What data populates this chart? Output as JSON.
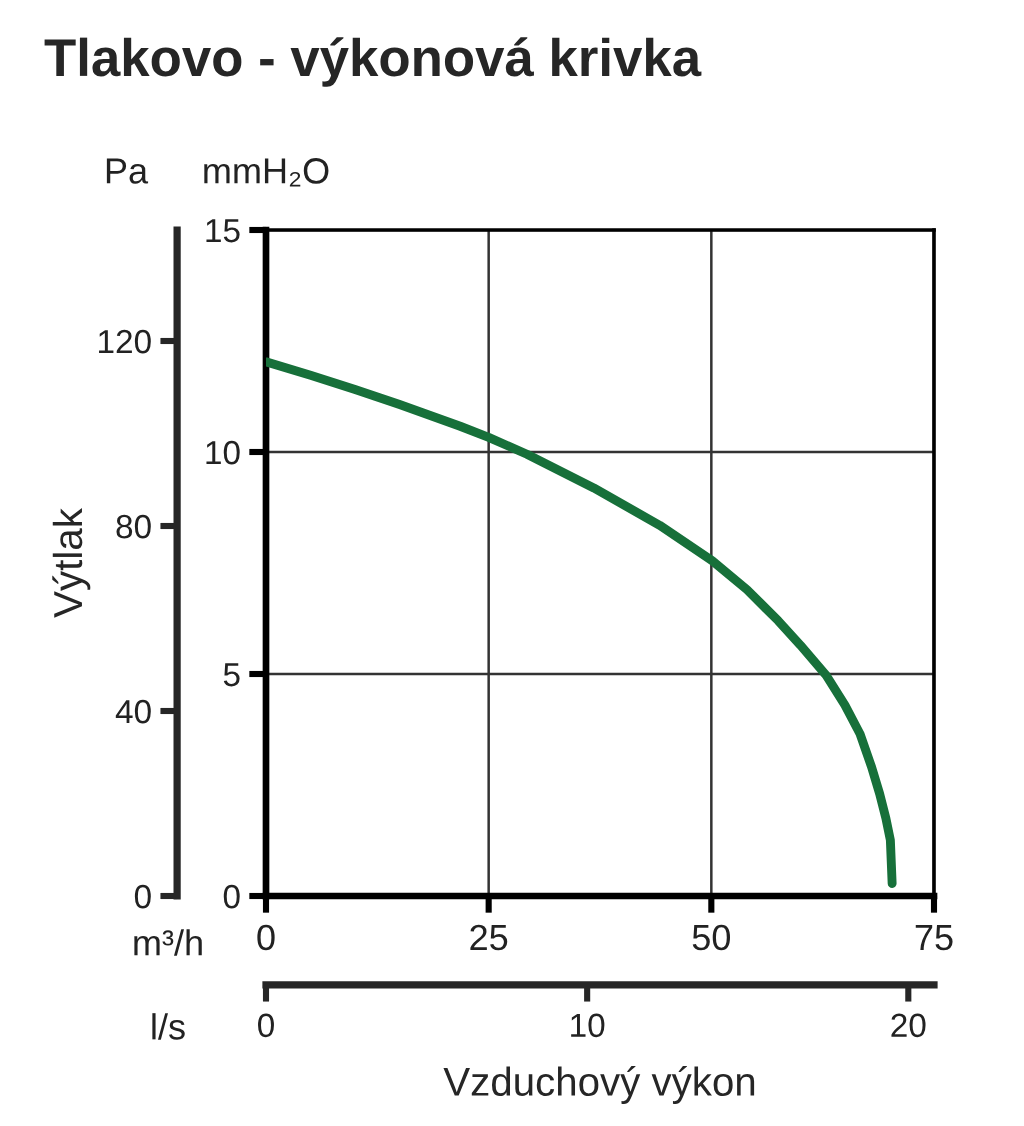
{
  "chart_data": {
    "type": "line",
    "title": "Tlakovo - výkonová krivka",
    "xlabel": "Vzduchový výkon",
    "y2label": "Výtlak",
    "annotations": [
      "Pa",
      "mmH₂O",
      "m³/h",
      "l/s"
    ],
    "xlim": [
      0,
      75
    ],
    "xticks": [
      0,
      25,
      50,
      75
    ],
    "ylim": [
      0,
      15
    ],
    "yticks": [
      0,
      5,
      10,
      15
    ],
    "y2lim": [
      0,
      144
    ],
    "y2ticks": [
      0,
      40,
      80,
      120
    ],
    "x2lim": [
      0,
      20.8
    ],
    "x2ticks": [
      0,
      10,
      20
    ],
    "grid": true,
    "series": [
      {
        "color": "#17703a",
        "x": [
          0,
          5,
          10,
          15,
          21.8,
          25,
          29.3,
          36.8,
          44.2,
          50.1,
          54,
          57.5,
          60,
          62.9,
          65,
          66.7,
          68,
          68.9,
          69.6,
          70.1,
          70.3
        ],
        "values": [
          12.03,
          11.73,
          11.41,
          11.07,
          10.58,
          10.33,
          9.95,
          9.19,
          8.35,
          7.55,
          6.9,
          6.2,
          5.65,
          4.97,
          4.3,
          3.65,
          2.9,
          2.3,
          1.75,
          1.26,
          0.28
        ]
      }
    ]
  }
}
